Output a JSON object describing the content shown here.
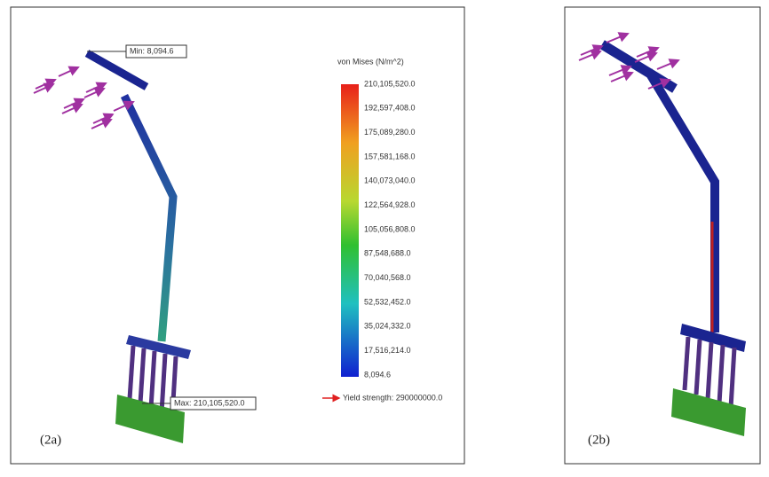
{
  "panel_a": {
    "label": "(2a)",
    "min_label": "Min: 8,094.6",
    "max_label": "Max: 210,105,520.0",
    "legend": {
      "title": "von Mises (N/m^2)",
      "labels": [
        "210,105,520.0",
        "192,597,408.0",
        "175,089,280.0",
        "157,581,168.0",
        "140,073,040.0",
        "122,564,928.0",
        "105,056,808.0",
        "87,548,688.0",
        "70,040,568.0",
        "52,532,452.0",
        "35,024,332.0",
        "17,516,214.0",
        "8,094.6"
      ],
      "yield": "Yield strength: 290000000.0"
    }
  },
  "panel_b": {
    "label": "(2b)"
  }
}
